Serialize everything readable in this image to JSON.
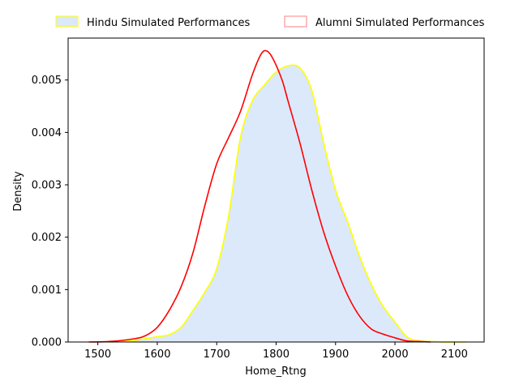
{
  "chart_data": {
    "type": "area",
    "xlabel": "Home_Rtng",
    "ylabel": "Density",
    "xlim": [
      1450,
      2150
    ],
    "ylim": [
      0,
      0.0058
    ],
    "x_ticks": [
      "1500",
      "1600",
      "1700",
      "1800",
      "1900",
      "2000",
      "2100"
    ],
    "y_ticks": [
      "0.000",
      "0.001",
      "0.002",
      "0.003",
      "0.004",
      "0.005"
    ],
    "grid": false,
    "legend_position": "top-center, above plot",
    "series": [
      {
        "name": "Hindu Simulated Performances",
        "style": "filled",
        "line_color": "#ffff00",
        "fill_color": "#dbe9fb",
        "x": [
          1520,
          1560,
          1600,
          1620,
          1640,
          1660,
          1680,
          1700,
          1720,
          1740,
          1760,
          1780,
          1800,
          1820,
          1840,
          1860,
          1880,
          1900,
          1920,
          1940,
          1960,
          1980,
          2000,
          2020,
          2040,
          2060,
          2080,
          2100,
          2120
        ],
        "y": [
          0.0,
          3e-05,
          0.0001,
          0.00014,
          0.00028,
          0.0006,
          0.00095,
          0.0014,
          0.0024,
          0.0039,
          0.0046,
          0.0049,
          0.00515,
          0.00527,
          0.00523,
          0.0048,
          0.0038,
          0.0029,
          0.0023,
          0.00165,
          0.0011,
          0.00068,
          0.00038,
          0.0001,
          2e-05,
          1e-05,
          0.0,
          0.0,
          0.0
        ]
      },
      {
        "name": "Alumni Simulated Performances",
        "style": "line",
        "line_color": "#ff0000",
        "x": [
          1485,
          1520,
          1560,
          1580,
          1600,
          1620,
          1640,
          1660,
          1680,
          1700,
          1720,
          1740,
          1760,
          1775,
          1785,
          1795,
          1810,
          1820,
          1840,
          1860,
          1880,
          1900,
          1920,
          1940,
          1960,
          1980,
          2000,
          2020,
          2040,
          2060
        ],
        "y": [
          0.0,
          1e-05,
          6e-05,
          0.00012,
          0.00028,
          0.0006,
          0.00105,
          0.0017,
          0.0026,
          0.0034,
          0.0039,
          0.0044,
          0.0051,
          0.0055,
          0.00555,
          0.0054,
          0.005,
          0.0046,
          0.0038,
          0.0029,
          0.0021,
          0.00145,
          0.0009,
          0.0005,
          0.00025,
          0.00015,
          8e-05,
          2e-05,
          1e-05,
          0.0
        ]
      }
    ]
  }
}
